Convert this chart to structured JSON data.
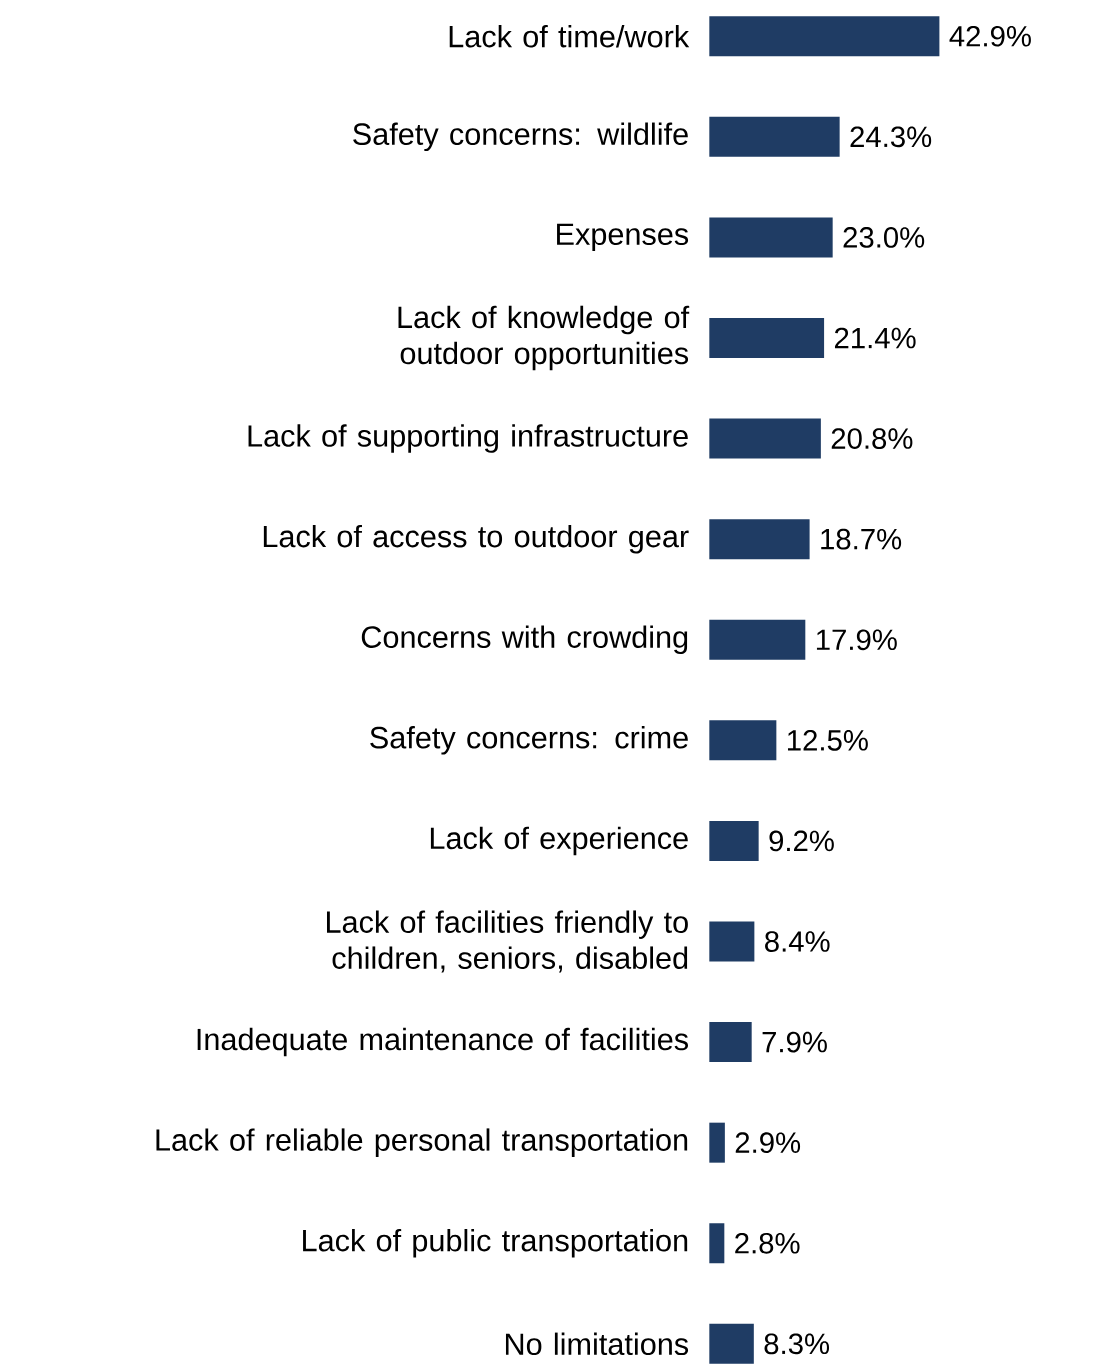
{
  "chart_data": {
    "type": "bar",
    "orientation": "horizontal",
    "categories": [
      "Lack of time/work",
      "Safety concerns: wildlife",
      "Expenses",
      "Lack of knowledge of outdoor opportunities",
      "Lack of supporting infrastructure",
      "Lack of access to outdoor gear",
      "Concerns with crowding",
      "Safety concerns: crime",
      "Lack of experience",
      "Lack of facilities friendly to children, seniors, disabled",
      "Inadequate maintenance of facilities",
      "Lack of reliable personal transportation",
      "Lack of public transportation",
      "No limitations"
    ],
    "values": [
      42.9,
      24.3,
      23.0,
      21.4,
      20.8,
      18.7,
      17.9,
      12.5,
      9.2,
      8.4,
      7.9,
      2.9,
      2.8,
      8.3
    ],
    "value_labels": [
      "42.9%",
      "24.3%",
      "23.0%",
      "21.4%",
      "20.8%",
      "18.7%",
      "17.9%",
      "12.5%",
      "9.2%",
      "8.4%",
      "7.9%",
      "2.9%",
      "2.8%",
      "8.3%"
    ],
    "color": "#1f3c64"
  }
}
